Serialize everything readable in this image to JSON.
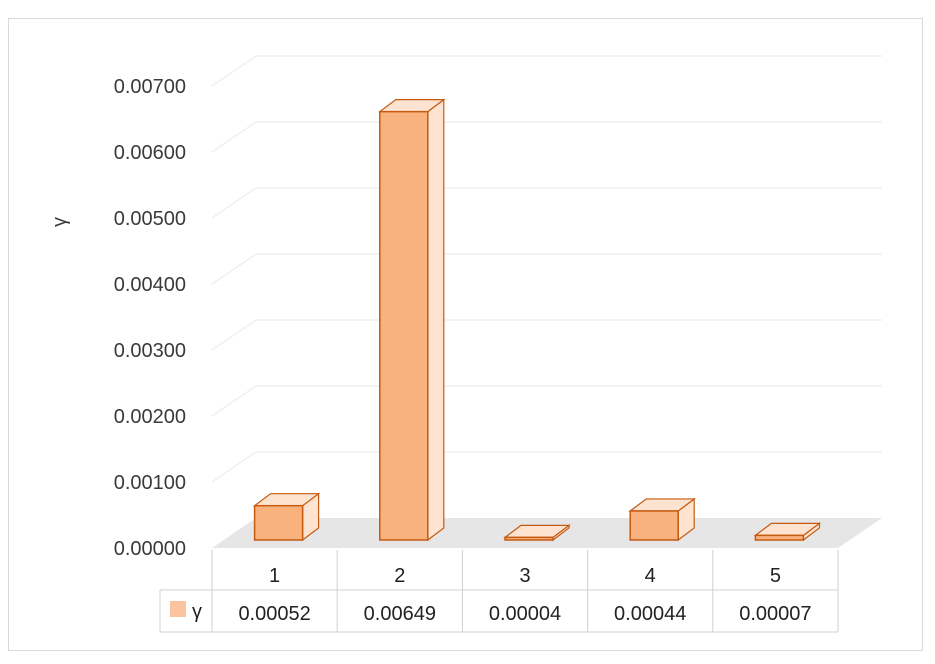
{
  "chart_data": {
    "type": "bar",
    "ylabel": "γ",
    "ylim": [
      0,
      0.007
    ],
    "y_ticks": [
      "0.00000",
      "0.00100",
      "0.00200",
      "0.00300",
      "0.00400",
      "0.00500",
      "0.00600",
      "0.00700"
    ],
    "categories": [
      "1",
      "2",
      "3",
      "4",
      "5"
    ],
    "series": [
      {
        "name": "γ",
        "values": [
          0.00052,
          0.00649,
          4e-05,
          0.00044,
          7e-05
        ],
        "value_labels": [
          "0.00052",
          "0.00649",
          "0.00004",
          "0.00044",
          "0.00007"
        ]
      }
    ],
    "data_table": true,
    "grid": true,
    "style": "3d-column",
    "colors": {
      "fill": "#f8b27e",
      "edge": "#c55a11",
      "floor": "#e6e6e6",
      "grid": "#ececec"
    }
  }
}
